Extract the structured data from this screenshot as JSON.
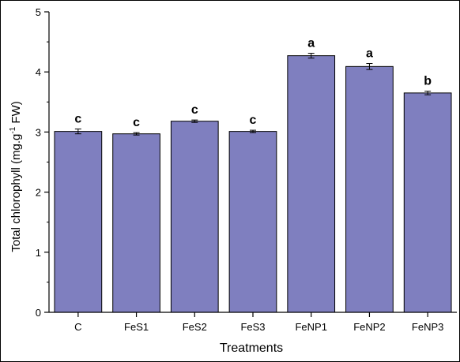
{
  "chart_data": {
    "type": "bar",
    "xlabel": "Treatments",
    "ylabel_main": "Total chlorophyll (mg.g",
    "ylabel_sup": "-1",
    "ylabel_tail": " FW)",
    "ylim": [
      0,
      5
    ],
    "yticks": [
      "0",
      "1",
      "2",
      "3",
      "4",
      "5"
    ],
    "categories": [
      "C",
      "FeS1",
      "FeS2",
      "FeS3",
      "FeNP1",
      "FeNP2",
      "FeNP3"
    ],
    "values": [
      3.01,
      2.97,
      3.18,
      3.01,
      4.27,
      4.09,
      3.65
    ],
    "errors": [
      0.04,
      0.02,
      0.02,
      0.02,
      0.04,
      0.05,
      0.03
    ],
    "letters": [
      "c",
      "c",
      "c",
      "c",
      "a",
      "a",
      "b"
    ],
    "bar_color": "#7f7fbf",
    "grid": false,
    "legend": "none"
  }
}
